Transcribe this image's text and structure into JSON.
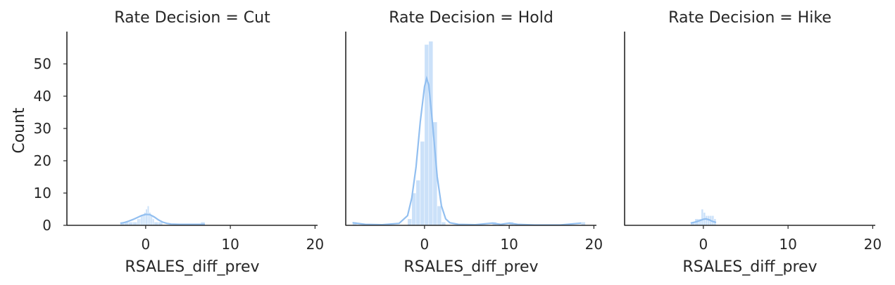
{
  "chart_data": {
    "type": "histogram-facet",
    "style": {
      "bar_color": "#a1c9f4",
      "kde_color": "#92bff0",
      "axis_color": "#262626",
      "background": "#ffffff"
    },
    "shared": {
      "xlabel": "RSALES_diff_prev",
      "ylabel": "Count",
      "xlim": [
        -9.3,
        20.3
      ],
      "ylim": [
        0,
        60
      ],
      "xticks": [
        0,
        10,
        20
      ],
      "yticks": [
        0,
        10,
        20,
        30,
        40,
        50
      ],
      "grid": false
    },
    "facets": [
      {
        "title": "Rate Decision = Cut",
        "bins": [
          [
            -3.0,
            -2.5,
            1
          ],
          [
            -2.5,
            -2.0,
            1
          ],
          [
            -2.0,
            -1.5,
            1
          ],
          [
            -1.5,
            -1.0,
            1
          ],
          [
            -1.0,
            -0.8,
            2
          ],
          [
            -0.8,
            -0.6,
            2
          ],
          [
            -0.6,
            -0.4,
            3
          ],
          [
            -0.4,
            -0.2,
            3
          ],
          [
            -0.2,
            0.0,
            4
          ],
          [
            0.0,
            0.2,
            5
          ],
          [
            0.2,
            0.4,
            6
          ],
          [
            0.4,
            0.6,
            4
          ],
          [
            0.6,
            0.8,
            3
          ],
          [
            0.8,
            1.0,
            2
          ],
          [
            1.0,
            1.5,
            1
          ],
          [
            1.5,
            2.0,
            1
          ],
          [
            6.5,
            7.0,
            1
          ]
        ],
        "kde": [
          [
            -3.0,
            0.6
          ],
          [
            -2.5,
            0.9
          ],
          [
            -2.0,
            1.3
          ],
          [
            -1.5,
            1.8
          ],
          [
            -1.0,
            2.4
          ],
          [
            -0.5,
            3.0
          ],
          [
            0.0,
            3.4
          ],
          [
            0.5,
            3.3
          ],
          [
            1.0,
            2.6
          ],
          [
            1.5,
            1.7
          ],
          [
            2.0,
            1.0
          ],
          [
            2.5,
            0.6
          ],
          [
            3.0,
            0.4
          ],
          [
            4.0,
            0.3
          ],
          [
            5.0,
            0.3
          ],
          [
            6.0,
            0.3
          ],
          [
            7.0,
            0.3
          ]
        ]
      },
      {
        "title": "Rate Decision = Hold",
        "bins": [
          [
            -8.5,
            -8.0,
            1
          ],
          [
            -2.0,
            -1.5,
            2
          ],
          [
            -1.5,
            -1.0,
            10
          ],
          [
            -1.0,
            -0.5,
            14
          ],
          [
            -0.5,
            0.0,
            26
          ],
          [
            0.0,
            0.5,
            56
          ],
          [
            0.5,
            1.0,
            57
          ],
          [
            1.0,
            1.5,
            32
          ],
          [
            1.5,
            2.0,
            6
          ],
          [
            2.0,
            2.5,
            1
          ],
          [
            8.0,
            8.5,
            1
          ],
          [
            10.0,
            10.5,
            1
          ],
          [
            18.5,
            19.0,
            1
          ]
        ],
        "kde": [
          [
            -8.5,
            0.8
          ],
          [
            -7.0,
            0.3
          ],
          [
            -5.0,
            0.2
          ],
          [
            -3.0,
            0.6
          ],
          [
            -2.0,
            3.0
          ],
          [
            -1.5,
            8.5
          ],
          [
            -1.0,
            18.0
          ],
          [
            -0.5,
            32.0
          ],
          [
            0.0,
            43.0
          ],
          [
            0.25,
            45.5
          ],
          [
            0.5,
            43.5
          ],
          [
            1.0,
            30.0
          ],
          [
            1.5,
            15.0
          ],
          [
            2.0,
            6.0
          ],
          [
            2.5,
            2.0
          ],
          [
            3.0,
            0.8
          ],
          [
            4.0,
            0.3
          ],
          [
            6.0,
            0.2
          ],
          [
            8.0,
            0.7
          ],
          [
            9.0,
            0.3
          ],
          [
            10.0,
            0.7
          ],
          [
            11.0,
            0.3
          ],
          [
            13.0,
            0.1
          ],
          [
            16.0,
            0.1
          ],
          [
            18.5,
            0.7
          ]
        ]
      },
      {
        "title": "Rate Decision = Hike",
        "bins": [
          [
            -1.5,
            -1.0,
            1
          ],
          [
            -1.0,
            -0.5,
            2
          ],
          [
            -0.5,
            -0.25,
            2
          ],
          [
            -0.25,
            0.0,
            5
          ],
          [
            0.0,
            0.25,
            4
          ],
          [
            0.25,
            0.5,
            3
          ],
          [
            0.5,
            0.75,
            3
          ],
          [
            0.75,
            1.0,
            3
          ],
          [
            1.0,
            1.25,
            3
          ],
          [
            1.25,
            1.5,
            2
          ]
        ],
        "kde": [
          [
            -1.5,
            0.7
          ],
          [
            -1.0,
            1.0
          ],
          [
            -0.5,
            1.4
          ],
          [
            0.0,
            1.9
          ],
          [
            0.3,
            2.0
          ],
          [
            0.7,
            1.7
          ],
          [
            1.0,
            1.3
          ],
          [
            1.5,
            0.9
          ]
        ]
      }
    ]
  }
}
